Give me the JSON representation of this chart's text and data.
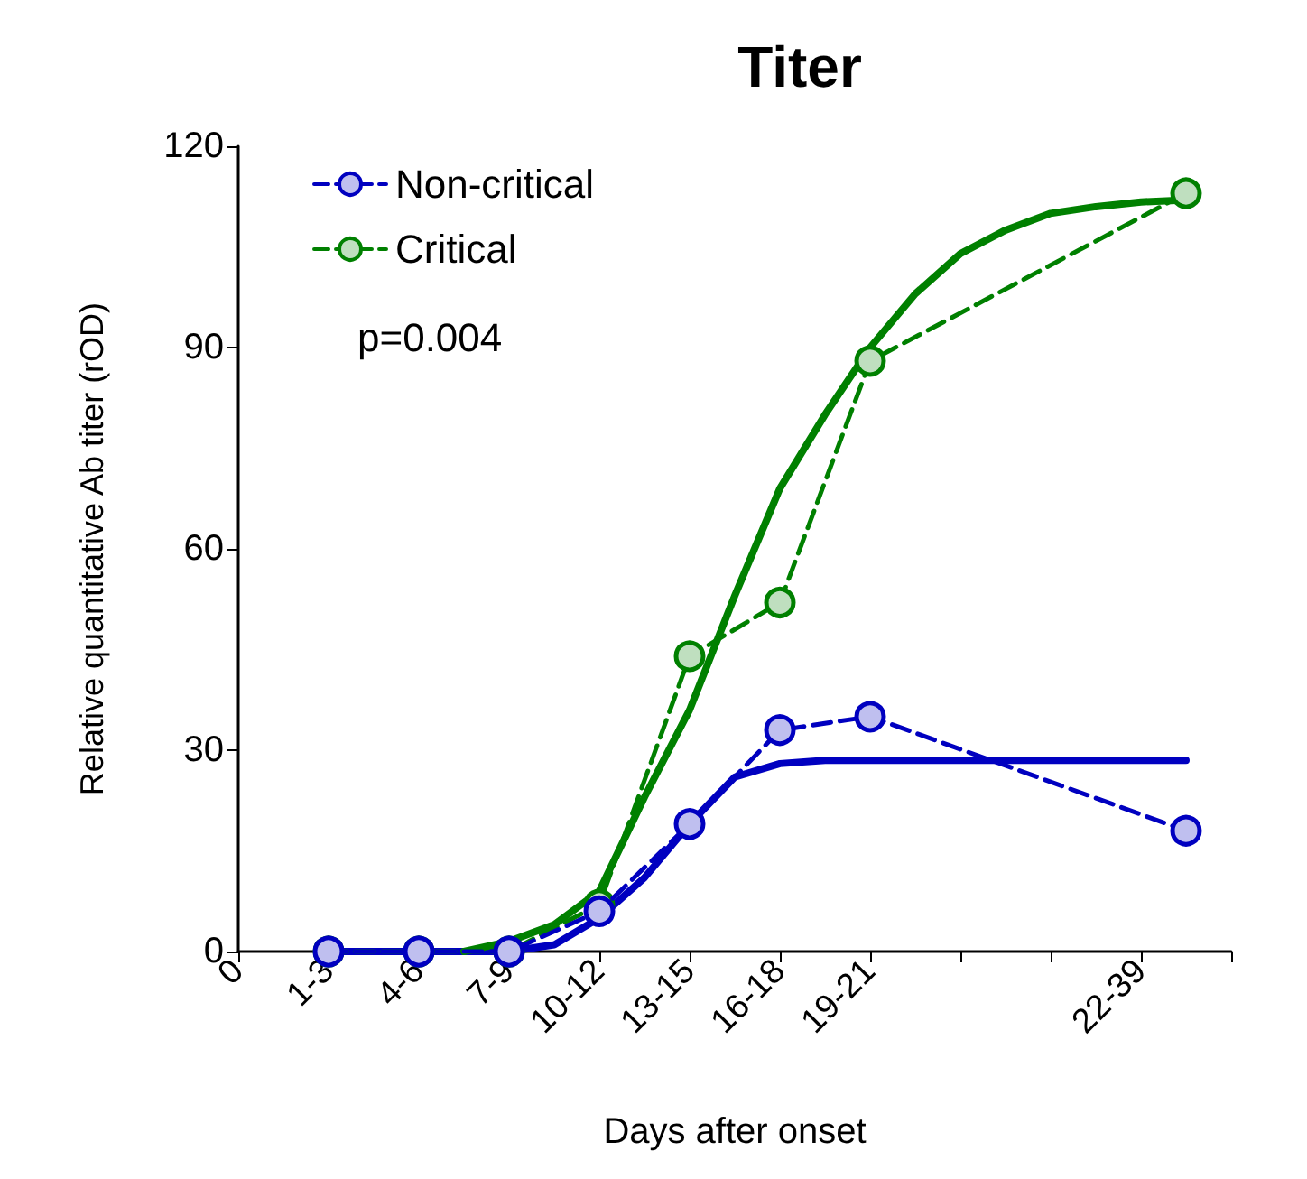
{
  "chart_data": {
    "type": "line",
    "title": "Titer",
    "xlabel": "Days after onset",
    "ylabel": "Relative quantitative Ab titer (rOD)",
    "categories": [
      "0",
      null,
      "1-3",
      null,
      "4-6",
      null,
      "7-9",
      null,
      "10-12",
      null,
      "13-15",
      null,
      "16-18",
      null,
      "19-21",
      null,
      null,
      null,
      null,
      null,
      "22-39",
      null,
      null
    ],
    "ylim": [
      0,
      120
    ],
    "yticks": [
      0,
      30,
      60,
      90,
      120
    ],
    "grid": false,
    "legend": "top left",
    "marker": "circle",
    "line_style": "dashed",
    "annotations": [
      "p=0.004"
    ],
    "series": [
      {
        "name": "Non-critical",
        "color": "#0000c0",
        "values": [
          null,
          null,
          0,
          null,
          0,
          null,
          0,
          null,
          6,
          null,
          19,
          null,
          33,
          null,
          35,
          null,
          null,
          null,
          null,
          null,
          null,
          18,
          null
        ]
      },
      {
        "name": "Critical",
        "color": "#008000",
        "values": [
          null,
          null,
          0,
          null,
          0,
          null,
          0,
          null,
          7,
          null,
          44,
          null,
          52,
          null,
          88,
          null,
          null,
          null,
          null,
          null,
          null,
          113,
          null
        ]
      },
      {
        "type": "line",
        "color": "#0000c0",
        "marker": "none",
        "line_style": "solid",
        "values": [
          null,
          null,
          0,
          0,
          0,
          0,
          0,
          1,
          5,
          11,
          19,
          26,
          28,
          28.5,
          28.5,
          28.5,
          28.5,
          28.5,
          28.5,
          28.5,
          28.5,
          28.5,
          null
        ]
      },
      {
        "type": "line",
        "color": "#008000",
        "marker": "none",
        "line_style": "solid",
        "values": [
          null,
          null,
          null,
          null,
          null,
          0,
          1.5,
          4,
          9,
          23,
          36,
          53,
          69,
          80,
          90,
          98,
          104,
          107.5,
          110,
          111,
          111.7,
          112,
          null
        ]
      }
    ]
  }
}
